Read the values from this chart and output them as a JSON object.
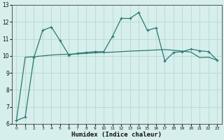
{
  "title": "",
  "xlabel": "Humidex (Indice chaleur)",
  "ylabel": "",
  "xlim": [
    -0.5,
    23.5
  ],
  "ylim": [
    6,
    13
  ],
  "yticks": [
    6,
    7,
    8,
    9,
    10,
    11,
    12,
    13
  ],
  "xticks": [
    0,
    1,
    2,
    3,
    4,
    5,
    6,
    7,
    8,
    9,
    10,
    11,
    12,
    13,
    14,
    15,
    16,
    17,
    18,
    19,
    20,
    21,
    22,
    23
  ],
  "bg_color": "#d6eeec",
  "grid_color": "#b8d8d4",
  "line_color": "#2a7a72",
  "series_jagged": [
    6.2,
    6.4,
    9.9,
    11.5,
    11.7,
    10.9,
    10.05,
    10.15,
    10.2,
    10.25,
    10.25,
    11.15,
    12.2,
    12.2,
    12.55,
    11.5,
    11.65,
    9.7,
    10.2,
    10.25,
    10.4,
    10.3,
    10.25,
    9.75
  ],
  "series_trend": [
    6.2,
    9.92,
    9.95,
    10.0,
    10.05,
    10.08,
    10.1,
    10.12,
    10.15,
    10.18,
    10.2,
    10.22,
    10.25,
    10.28,
    10.3,
    10.32,
    10.35,
    10.37,
    10.33,
    10.28,
    10.22,
    9.9,
    9.92,
    9.75
  ]
}
